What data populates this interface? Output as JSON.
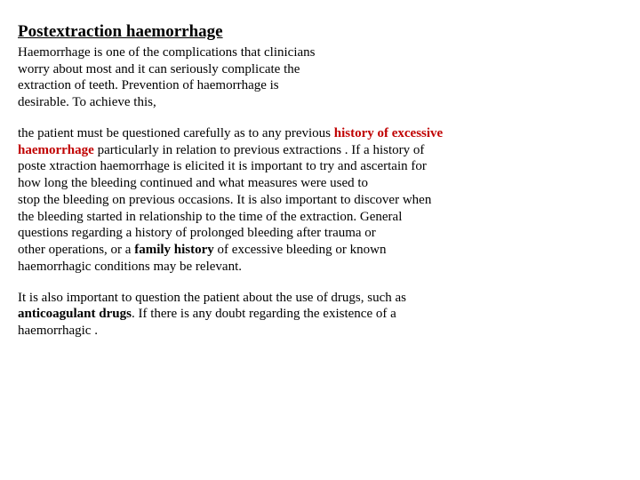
{
  "title": "Postextraction haemorrhage",
  "para1": {
    "l1": "Haemorrhage is one of the complications that clinicians",
    "l2": "worry about most and it can seriously complicate the",
    "l3": "extraction of teeth. Prevention of haemorrhage is",
    "l4": "desirable. To achieve this,"
  },
  "para2": {
    "l1a": "the patient must be questioned carefully as to any previous ",
    "l1b": "history of excessive",
    "l2a": "haemorrhage",
    "l2b": " particularly in relation to previous extractions . If a history of",
    "l3": "poste xtraction haemorrhage is elicited it is important to try and ascertain for",
    "l4": "how long the bleeding continued and what measures were used to",
    "l5": "stop the bleeding on previous occasions. It is also important to discover when",
    "l6": "the bleeding started in relationship to the time of the extraction. General",
    "l7": "questions regarding a history of prolonged bleeding after trauma or",
    "l8a": "other operations, or a ",
    "l8b": "family history",
    "l8c": " of excessive bleeding or known",
    "l9": "haemorrhagic conditions may be relevant."
  },
  "para3": {
    "l1": "It is also important to question the patient about the use of drugs, such as",
    "l2a": "anticoagulant drugs",
    "l2b": ". If there is any doubt regarding the existence of a",
    "l3": "haemorrhagic ."
  }
}
